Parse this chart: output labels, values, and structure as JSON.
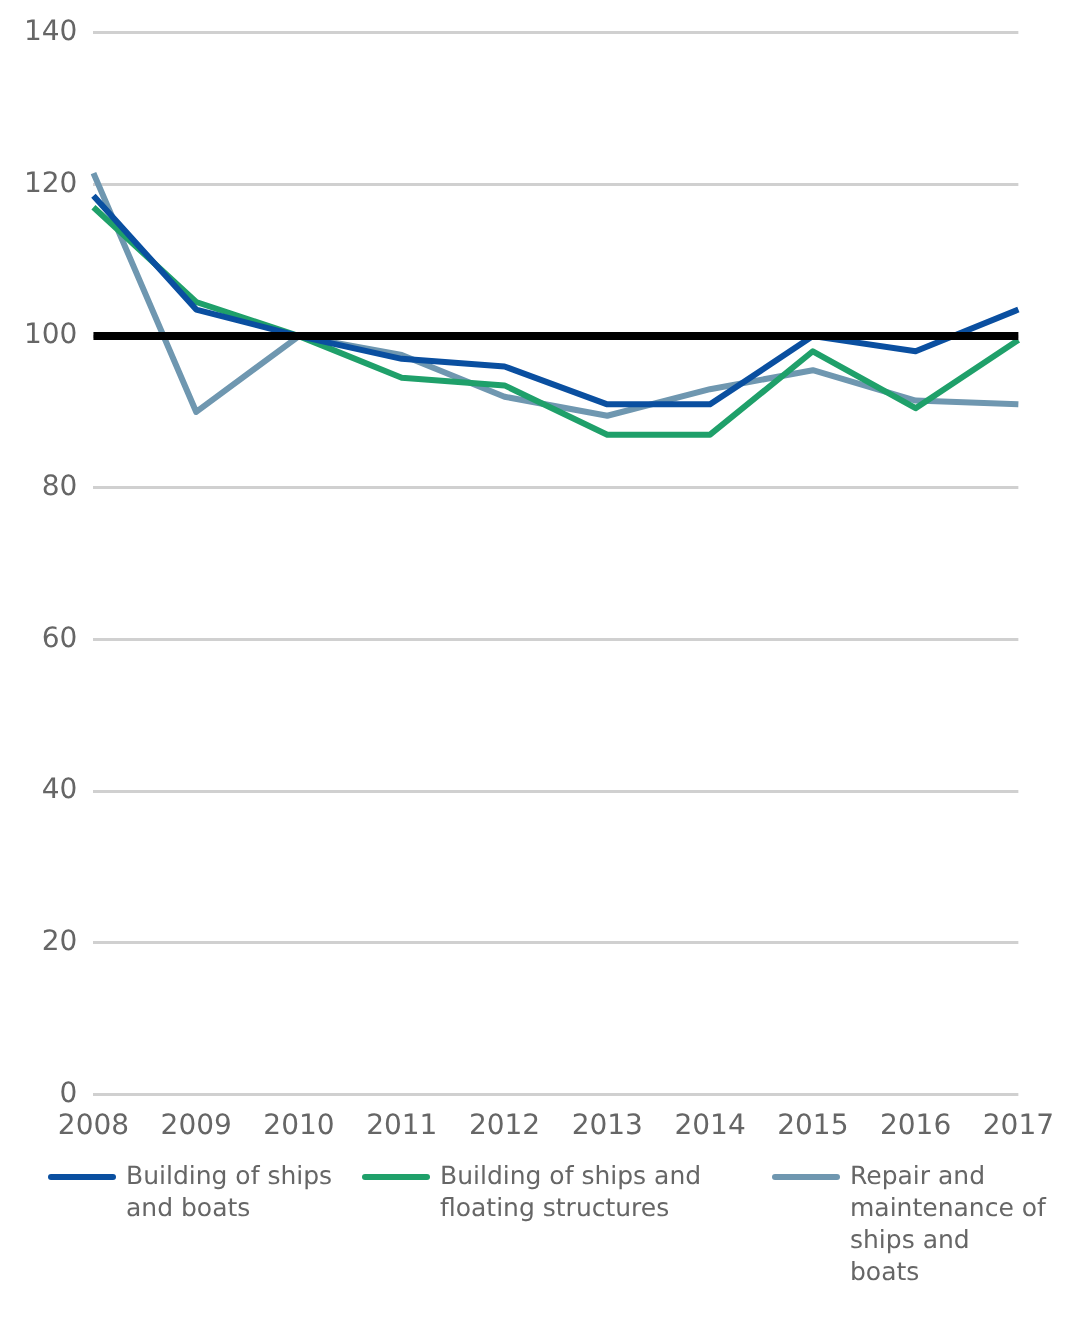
{
  "chart_data": {
    "type": "line",
    "categories": [
      "2008",
      "2009",
      "2010",
      "2011",
      "2012",
      "2013",
      "2014",
      "2015",
      "2016",
      "2017"
    ],
    "series": [
      {
        "name": "Building of ships and boats",
        "color": "#0a4fa0",
        "values": [
          118.5,
          103.5,
          100,
          97,
          96,
          91,
          91,
          100,
          98,
          103.5
        ]
      },
      {
        "name": "Building of ships and floating structures",
        "color": "#1fa06a",
        "values": [
          117,
          104.5,
          100,
          94.5,
          93.5,
          87,
          87,
          98,
          90.5,
          99.5
        ]
      },
      {
        "name": "Repair and maintenance of ships and boats",
        "color": "#6f97b0",
        "values": [
          121.5,
          90,
          100,
          97.5,
          92,
          89.5,
          93,
          95.5,
          91.5,
          91
        ]
      }
    ],
    "ylim": [
      0,
      140
    ],
    "yticks": [
      0,
      20,
      40,
      60,
      80,
      100,
      120,
      140
    ],
    "grid": "y",
    "legend": "bottom",
    "marker": "none",
    "line_style": "solid",
    "ref_lines": [
      {
        "axis": "y",
        "value": 100,
        "color": "#000000"
      }
    ]
  }
}
